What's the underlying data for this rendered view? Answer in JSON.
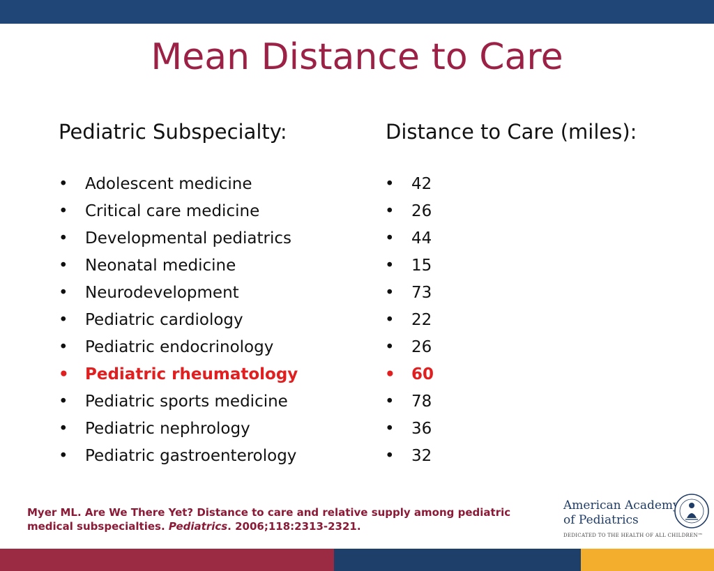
{
  "title": "Mean Distance to Care",
  "columns": {
    "left_header": "Pediatric Subspecialty:",
    "right_header": "Distance to Care (miles):"
  },
  "bullet": "•",
  "subspecialties": [
    "Adolescent medicine",
    "Critical care medicine",
    "Developmental pediatrics",
    "Neonatal medicine",
    "Neurodevelopment",
    "Pediatric cardiology",
    "Pediatric endocrinology",
    "Pediatric rheumatology",
    "Pediatric sports medicine",
    "Pediatric nephrology",
    "Pediatric gastroenterology"
  ],
  "distances": [
    "42",
    "26",
    "44",
    "15",
    "73",
    "22",
    "26",
    "60",
    "78",
    "36",
    "32"
  ],
  "highlight_index": 7,
  "citation": {
    "part1": "Myer ML. Are We There Yet? Distance to care and relative supply among pediatric medical  subspecialties. ",
    "journal": "Pediatrics",
    "part2": ". 2006;118:2313-2321."
  },
  "logo": {
    "line1": "American Academy",
    "line2": "of Pediatrics",
    "tagline": "DEDICATED TO THE HEALTH OF ALL CHILDREN™",
    "seal_text": "AMERICAN ACADEMY OF PEDIATRICS"
  },
  "colors": {
    "title": "#9b2146",
    "highlight": "#e02020",
    "top_bar": "#1f4677",
    "bottom_red": "#9b2a43",
    "bottom_blue": "#1f3f6b",
    "bottom_yellow": "#f2ae2c"
  }
}
